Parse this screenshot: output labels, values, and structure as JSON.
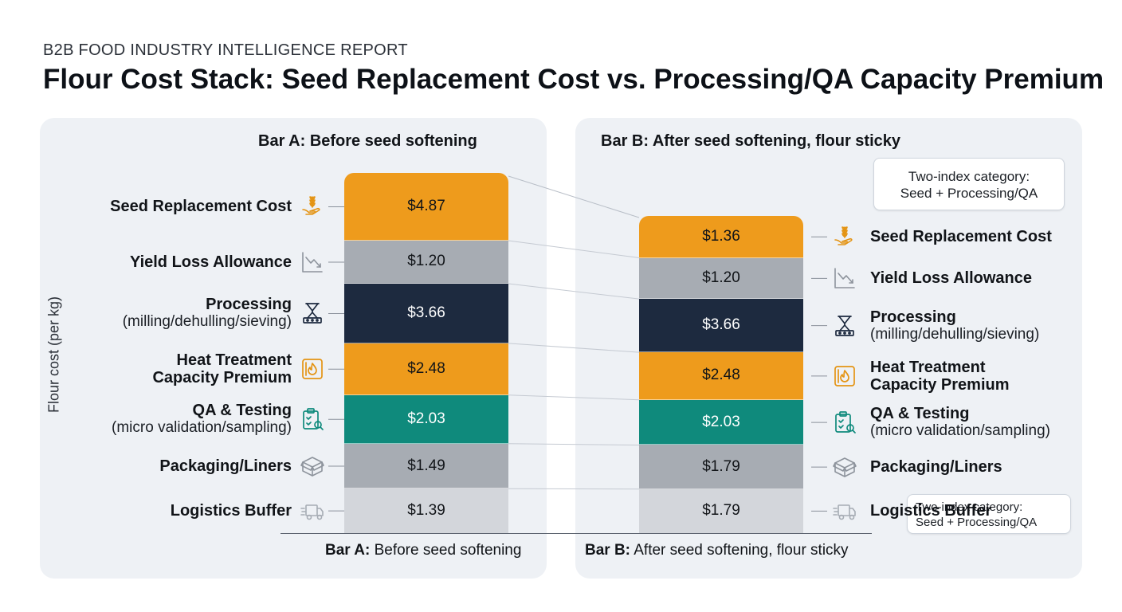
{
  "header": {
    "kicker": "B2B FOOD INDUSTRY INTELLIGENCE REPORT",
    "title": "Flour Cost Stack: Seed Replacement Cost vs. Processing/QA Capacity Premium"
  },
  "chart_data": {
    "type": "bar",
    "stacked": true,
    "ylabel": "Flour cost (per kg)",
    "categories": [
      "Bar A: Before seed softening",
      "Bar B: After seed softening, flour sticky"
    ],
    "bar_titles": [
      "Bar A: Before seed softening",
      "Bar B: After seed softening, flour sticky"
    ],
    "bar_foot": [
      {
        "bold": "Bar A:",
        "rest": "Before seed softening"
      },
      {
        "bold": "Bar B:",
        "rest": "After seed softening, flour sticky"
      }
    ],
    "series": [
      {
        "name": "Seed Replacement Cost",
        "sub": "",
        "icon": "wheat-hand-icon",
        "color": "#ee9b1c",
        "text_color": "#111418",
        "values": [
          4.87,
          1.36
        ],
        "labels": [
          "$4.87",
          "$1.36"
        ]
      },
      {
        "name": "Yield Loss Allowance",
        "sub": "",
        "icon": "trend-down-icon",
        "color": "#a7acb3",
        "text_color": "#111418",
        "values": [
          1.2,
          1.2
        ],
        "labels": [
          "$1.20",
          "$1.20"
        ]
      },
      {
        "name": "Processing",
        "sub": "(milling/dehulling/sieving)",
        "icon": "mill-icon",
        "color": "#1d2a3f",
        "text_color": "#ffffff",
        "values": [
          3.66,
          3.66
        ],
        "labels": [
          "$3.66",
          "$3.66"
        ]
      },
      {
        "name": "Heat Treatment",
        "sub": "Capacity Premium",
        "sub_bold": true,
        "icon": "heat-icon",
        "color": "#ee9b1c",
        "text_color": "#111418",
        "values": [
          2.48,
          2.48
        ],
        "labels": [
          "$2.48",
          "$2.48"
        ]
      },
      {
        "name": "QA & Testing",
        "sub": "(micro validation/sampling)",
        "icon": "clipboard-search-icon",
        "color": "#0f8a7c",
        "text_color": "#ffffff",
        "values": [
          2.03,
          2.03
        ],
        "labels": [
          "$2.03",
          "$2.03"
        ]
      },
      {
        "name": "Packaging/Liners",
        "sub": "",
        "icon": "box-icon",
        "color": "#a7acb3",
        "text_color": "#111418",
        "values": [
          1.49,
          1.79
        ],
        "labels": [
          "$1.49",
          "$1.79"
        ]
      },
      {
        "name": "Logistics Buffer",
        "sub": "",
        "icon": "truck-icon",
        "color": "#d3d6db",
        "text_color": "#111418",
        "values": [
          1.39,
          1.79
        ],
        "labels": [
          "$1.39",
          "$1.79"
        ]
      }
    ],
    "grid": false
  },
  "notes": {
    "top": [
      "Two-index category:",
      "Seed + Processing/QA"
    ],
    "bottom": [
      "Two-index category:",
      "Seed + Processing/QA"
    ]
  }
}
